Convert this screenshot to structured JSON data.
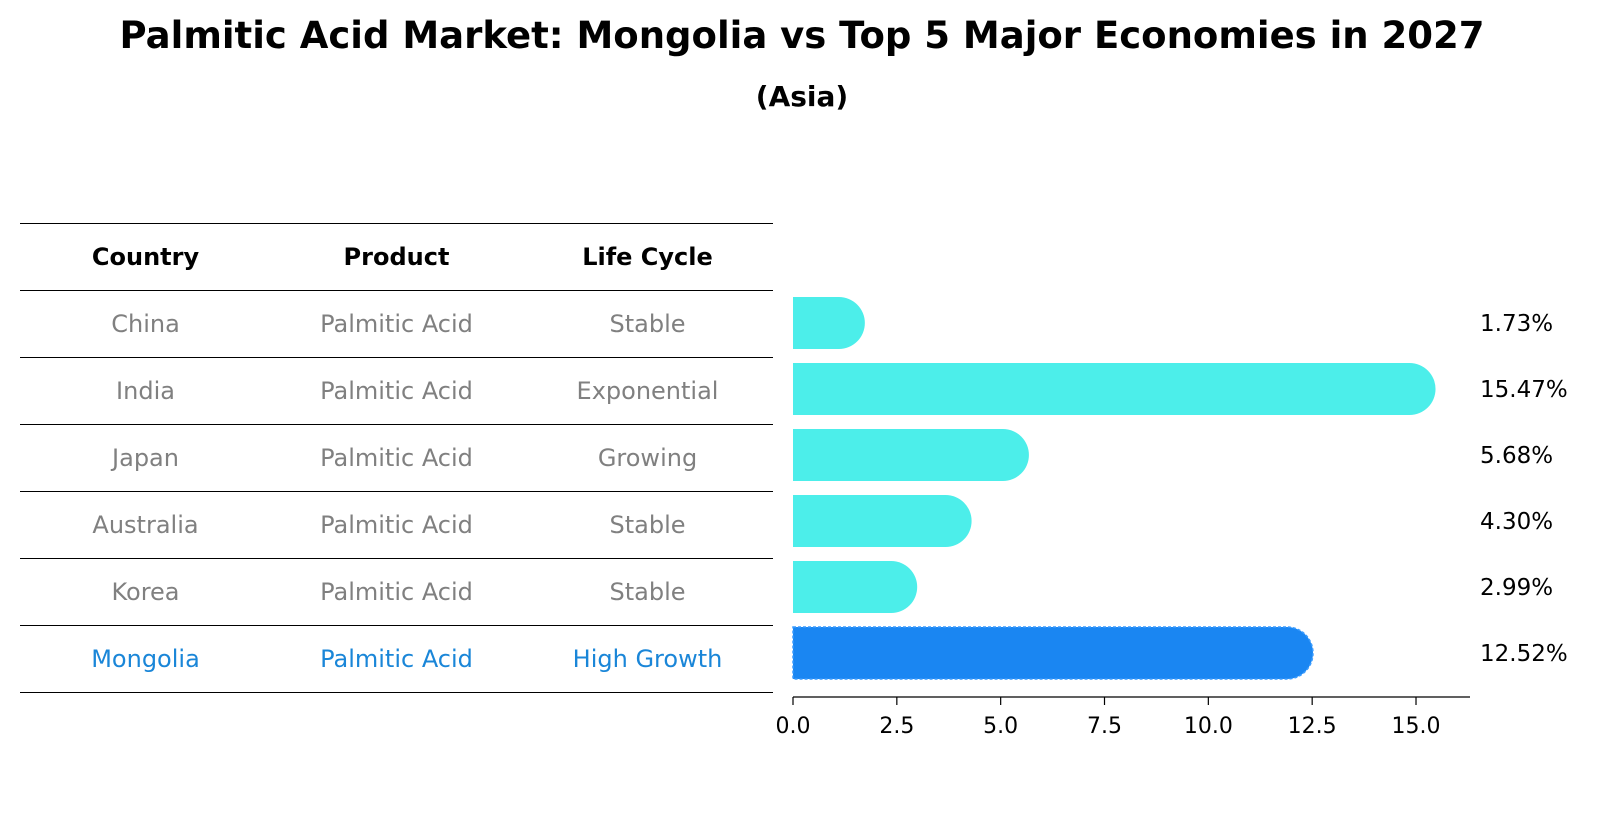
{
  "title": "Palmitic Acid Market: Mongolia vs Top 5 Major Economies in 2027",
  "subtitle": "(Asia)",
  "table": {
    "headers": [
      "Country",
      "Product",
      "Life Cycle"
    ],
    "rows": [
      [
        "China",
        "Palmitic Acid",
        "Stable"
      ],
      [
        "India",
        "Palmitic Acid",
        "Exponential"
      ],
      [
        "Japan",
        "Palmitic Acid",
        "Growing"
      ],
      [
        "Australia",
        "Palmitic Acid",
        "Stable"
      ],
      [
        "Korea",
        "Palmitic Acid",
        "Stable"
      ],
      [
        "Mongolia",
        "Palmitic Acid",
        "High Growth"
      ]
    ]
  },
  "colors": {
    "bar": "#4ceeea",
    "highlight": "#1a86f2",
    "highlight_text": "#1a86d8",
    "muted_text": "#808080"
  },
  "chart_data": {
    "type": "bar",
    "orientation": "horizontal",
    "categories": [
      "China",
      "India",
      "Japan",
      "Australia",
      "Korea",
      "Mongolia"
    ],
    "values": [
      1.73,
      15.47,
      5.68,
      4.3,
      2.99,
      12.52
    ],
    "value_labels": [
      "1.73%",
      "15.47%",
      "5.68%",
      "4.30%",
      "2.99%",
      "12.52%"
    ],
    "highlight": "Mongolia",
    "xlim": [
      0,
      16.3
    ],
    "xticks": [
      0.0,
      2.5,
      5.0,
      7.5,
      10.0,
      12.5,
      15.0
    ],
    "xtick_labels": [
      "0.0",
      "2.5",
      "5.0",
      "7.5",
      "10.0",
      "12.5",
      "15.0"
    ],
    "title": "Palmitic Acid Market: Mongolia vs Top 5 Major Economies in 2027",
    "subtitle": "(Asia)",
    "xlabel": "",
    "ylabel": ""
  }
}
